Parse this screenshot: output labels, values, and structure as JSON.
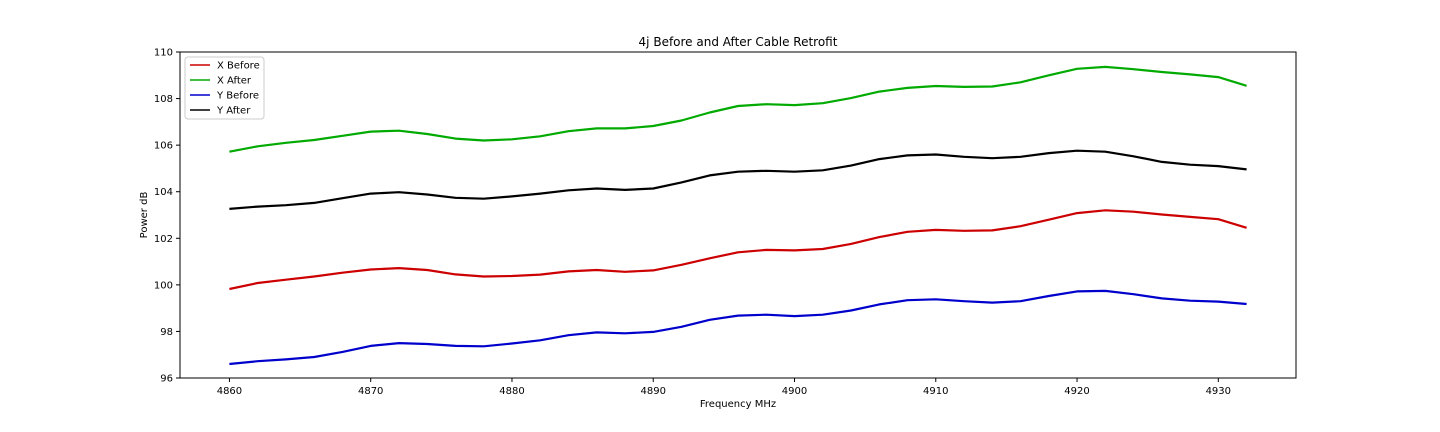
{
  "chart_data": {
    "type": "line",
    "title": "4j Before and After Cable Retrofit",
    "xlabel": "Frequency MHz",
    "ylabel": "Power dB",
    "xlim": [
      4856.5,
      4935.5
    ],
    "ylim": [
      96,
      110
    ],
    "xticks": [
      4860,
      4870,
      4880,
      4890,
      4900,
      4910,
      4920,
      4930
    ],
    "yticks": [
      96,
      98,
      100,
      102,
      104,
      106,
      108,
      110
    ],
    "grid": false,
    "legend_position": "top-left",
    "x": [
      4860,
      4862,
      4864,
      4866,
      4868,
      4870,
      4872,
      4874,
      4876,
      4878,
      4880,
      4882,
      4884,
      4886,
      4888,
      4890,
      4892,
      4894,
      4896,
      4898,
      4900,
      4902,
      4904,
      4906,
      4908,
      4910,
      4912,
      4914,
      4916,
      4918,
      4920,
      4922,
      4924,
      4926,
      4928,
      4930,
      4932
    ],
    "series": [
      {
        "name": "X Before",
        "color": "#cc0000",
        "values": [
          99.82,
          100.08,
          100.22,
          100.36,
          100.52,
          100.66,
          100.72,
          100.64,
          100.45,
          100.36,
          100.38,
          100.44,
          100.58,
          100.64,
          100.56,
          100.62,
          100.86,
          101.14,
          101.4,
          101.5,
          101.48,
          101.54,
          101.76,
          102.05,
          102.28,
          102.36,
          102.32,
          102.34,
          102.52,
          102.8,
          103.08,
          103.2,
          103.14,
          103.02,
          102.92,
          102.82,
          102.45
        ]
      },
      {
        "name": "X After",
        "color": "#00aa00",
        "values": [
          105.72,
          105.95,
          106.1,
          106.22,
          106.4,
          106.58,
          106.62,
          106.48,
          106.28,
          106.2,
          106.25,
          106.38,
          106.6,
          106.72,
          106.72,
          106.82,
          107.06,
          107.4,
          107.68,
          107.76,
          107.72,
          107.8,
          108.02,
          108.3,
          108.46,
          108.54,
          108.5,
          108.52,
          108.7,
          109.0,
          109.28,
          109.36,
          109.26,
          109.14,
          109.04,
          108.92,
          108.55
        ]
      },
      {
        "name": "Y Before",
        "color": "#0000cc",
        "values": [
          96.6,
          96.72,
          96.8,
          96.9,
          97.12,
          97.38,
          97.5,
          97.46,
          97.38,
          97.36,
          97.48,
          97.62,
          97.84,
          97.96,
          97.92,
          97.98,
          98.2,
          98.5,
          98.68,
          98.72,
          98.66,
          98.72,
          98.9,
          99.16,
          99.34,
          99.38,
          99.3,
          99.24,
          99.3,
          99.52,
          99.72,
          99.74,
          99.6,
          99.42,
          99.32,
          99.28,
          99.18
        ]
      },
      {
        "name": "Y After",
        "color": "#000000",
        "values": [
          103.26,
          103.36,
          103.42,
          103.52,
          103.72,
          103.92,
          103.98,
          103.88,
          103.74,
          103.7,
          103.8,
          103.92,
          104.06,
          104.14,
          104.08,
          104.14,
          104.4,
          104.7,
          104.86,
          104.9,
          104.86,
          104.92,
          105.12,
          105.4,
          105.56,
          105.6,
          105.5,
          105.44,
          105.5,
          105.66,
          105.76,
          105.72,
          105.52,
          105.28,
          105.16,
          105.1,
          104.96
        ]
      }
    ]
  }
}
